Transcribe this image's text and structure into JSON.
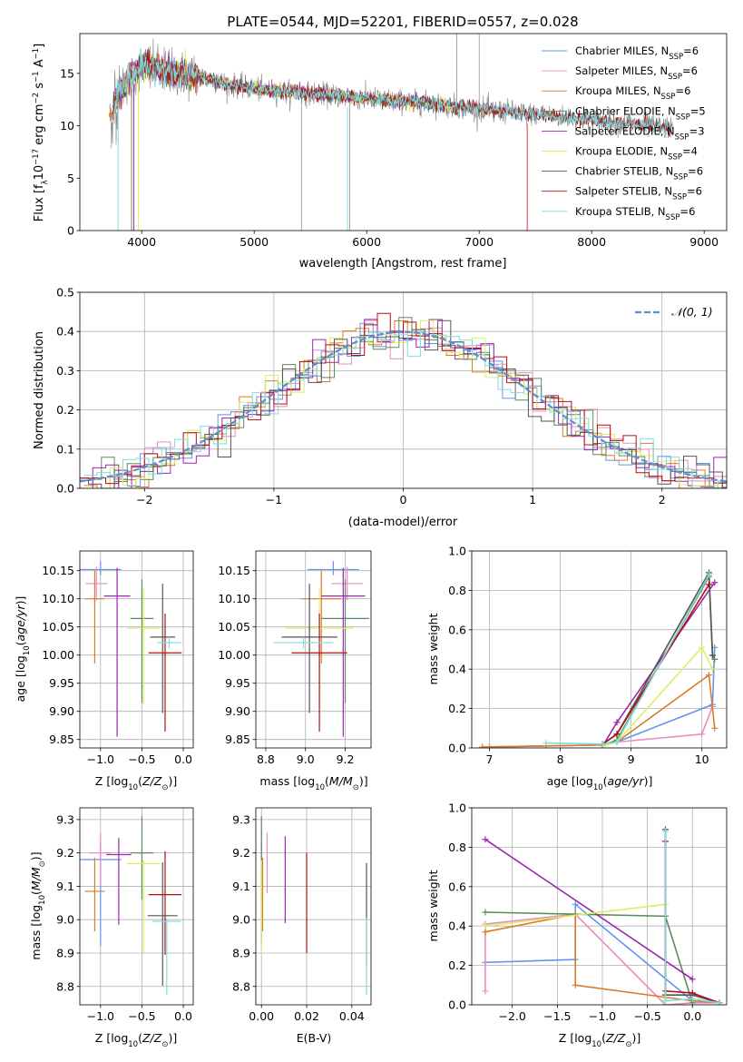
{
  "figure_title": "PLATE=0544, MJD=52201, FIBERID=0557, z=0.028",
  "colors": {
    "Chabrier MILES": "#6495ed",
    "Salpeter MILES": "#e88cc0",
    "Kroupa MILES": "#d87c28",
    "Chabrier ELODIE": "#5f8a5f",
    "Salpeter ELODIE": "#9c27b0",
    "Kroupa ELODIE": "#d8f060",
    "Chabrier STELIB": "#555555",
    "Salpeter STELIB": "#b01010",
    "Kroupa STELIB": "#80dce0",
    "data_spectrum": "#808080",
    "normal_curve": "#5b8fd6"
  },
  "chart_data": [
    {
      "id": "spectrum",
      "type": "line",
      "title": "PLATE=0544, MJD=52201, FIBERID=0557, z=0.028",
      "xlabel": "wavelength [Angstrom, rest frame]",
      "ylabel_main": "Flux [f",
      "ylabel_sub": "λ",
      "ylabel_rest": "10",
      "ylabel_exp": "−17",
      "ylabel_units": " erg cm",
      "ylabel_exp2": "−2",
      "ylabel_s": " s",
      "ylabel_exp3": "−1",
      "ylabel_A": " A",
      "ylabel_exp4": "−1",
      "ylabel_end": "]",
      "xlim": [
        3450,
        9200
      ],
      "ylim": [
        0,
        18.8
      ],
      "xticks": [
        4000,
        5000,
        6000,
        7000,
        8000,
        9000
      ],
      "yticks": [
        0,
        5,
        10,
        15
      ],
      "continuum": {
        "x": [
          3720,
          3800,
          3900,
          4000,
          4100,
          4300,
          4500,
          4800,
          5000,
          5300,
          5600,
          6000,
          6500,
          7000,
          7400,
          7800,
          8200,
          8700
        ],
        "y": [
          10.5,
          13.5,
          14.5,
          15.8,
          15.6,
          15.0,
          14.7,
          13.9,
          13.5,
          13.2,
          13.0,
          12.6,
          12.2,
          11.6,
          11.2,
          10.8,
          10.3,
          9.8
        ]
      },
      "legend": [
        {
          "label": "Chabrier MILES",
          "nssp": "6"
        },
        {
          "label": "Salpeter MILES",
          "nssp": "6"
        },
        {
          "label": "Kroupa MILES",
          "nssp": "6"
        },
        {
          "label": "Chabrier ELODIE",
          "nssp": "5"
        },
        {
          "label": "Salpeter ELODIE",
          "nssp": "3"
        },
        {
          "label": "Kroupa ELODIE",
          "nssp": "4"
        },
        {
          "label": "Chabrier STELIB",
          "nssp": "6"
        },
        {
          "label": "Salpeter STELIB",
          "nssp": "6"
        },
        {
          "label": "Kroupa STELIB",
          "nssp": "6"
        }
      ],
      "legend_prefix": "N",
      "legend_sub": "SSP",
      "legend_eq": "="
    },
    {
      "id": "residuals",
      "type": "histogram",
      "xlabel": "(data-model)/error",
      "ylabel": "Normed distribution",
      "xlim": [
        -2.5,
        2.5
      ],
      "ylim": [
        0,
        0.5
      ],
      "xticks": [
        -2,
        -1,
        0,
        1,
        2
      ],
      "yticks": [
        0.0,
        0.1,
        0.2,
        0.3,
        0.4,
        0.5
      ],
      "legend": "𝒩(0, 1)",
      "bin_width": 0.1
    },
    {
      "id": "age_vs_Z",
      "type": "errorbar",
      "xlabel": "Z [log",
      "xlabel_sub": "10",
      "xlabel_rest": "(Z/Z",
      "xlabel_sun": "⊙",
      "xlabel_end": ")]",
      "ylabel": "age  [log",
      "ylabel_sub": "10",
      "ylabel_rest": "(age/yr)]",
      "xlim": [
        -1.25,
        0.12
      ],
      "ylim": [
        9.835,
        10.185
      ],
      "xticks": [
        -1.0,
        -0.5,
        0.0
      ],
      "yticks": [
        9.85,
        9.9,
        9.95,
        10.0,
        10.05,
        10.1,
        10.15
      ],
      "points": [
        {
          "model": "Chabrier MILES",
          "x": -1.0,
          "xerr": 0.25,
          "y": 10.152,
          "yerr_lo": 0.01,
          "yerr_hi": 0.015
        },
        {
          "model": "Salpeter MILES",
          "x": -1.05,
          "xerr": 0.13,
          "y": 10.127,
          "yerr_lo": 0.03,
          "yerr_hi": 0.03
        },
        {
          "model": "Kroupa MILES",
          "x": -1.07,
          "xerr": 0.12,
          "y": 10.1,
          "yerr_lo": 0.115,
          "yerr_hi": 0.05
        },
        {
          "model": "Chabrier ELODIE",
          "x": -0.5,
          "xerr": 0.14,
          "y": 10.065,
          "yerr_lo": 0.15,
          "yerr_hi": 0.07
        },
        {
          "model": "Salpeter ELODIE",
          "x": -0.8,
          "xerr": 0.16,
          "y": 10.105,
          "yerr_lo": 0.25,
          "yerr_hi": 0.05
        },
        {
          "model": "Kroupa ELODIE",
          "x": -0.48,
          "xerr": 0.2,
          "y": 10.048,
          "yerr_lo": 0.135,
          "yerr_hi": 0.07
        },
        {
          "model": "Chabrier STELIB",
          "x": -0.25,
          "xerr": 0.15,
          "y": 10.032,
          "yerr_lo": 0.135,
          "yerr_hi": 0.095
        },
        {
          "model": "Salpeter STELIB",
          "x": -0.22,
          "xerr": 0.2,
          "y": 10.004,
          "yerr_lo": 0.14,
          "yerr_hi": 0.07
        },
        {
          "model": "Kroupa STELIB",
          "x": -0.17,
          "xerr": 0.15,
          "y": 10.022,
          "yerr_lo": 0.01,
          "yerr_hi": 0.01
        }
      ]
    },
    {
      "id": "age_vs_mass",
      "type": "errorbar",
      "xlabel": "mass [log",
      "xlabel_sub": "10",
      "xlabel_rest": "(M/M",
      "xlabel_sun": "⊙",
      "xlabel_end": ")]",
      "xlim": [
        8.75,
        9.33
      ],
      "ylim": [
        9.835,
        10.185
      ],
      "xticks": [
        8.8,
        9.0,
        9.2
      ],
      "yticks": [
        9.85,
        9.9,
        9.95,
        10.0,
        10.05,
        10.1,
        10.15
      ],
      "points": [
        {
          "model": "Chabrier MILES",
          "x": 9.14,
          "xerr": 0.13,
          "y": 10.152,
          "yerr_lo": 0.01,
          "yerr_hi": 0.015
        },
        {
          "model": "Salpeter MILES",
          "x": 9.21,
          "xerr": 0.08,
          "y": 10.127,
          "yerr_lo": 0.03,
          "yerr_hi": 0.03
        },
        {
          "model": "Kroupa MILES",
          "x": 9.08,
          "xerr": 0.1,
          "y": 10.1,
          "yerr_lo": 0.115,
          "yerr_hi": 0.05
        },
        {
          "model": "Chabrier ELODIE",
          "x": 9.2,
          "xerr": 0.12,
          "y": 10.065,
          "yerr_lo": 0.15,
          "yerr_hi": 0.07
        },
        {
          "model": "Salpeter ELODIE",
          "x": 9.19,
          "xerr": 0.11,
          "y": 10.105,
          "yerr_lo": 0.25,
          "yerr_hi": 0.05
        },
        {
          "model": "Kroupa ELODIE",
          "x": 9.07,
          "xerr": 0.17,
          "y": 10.048,
          "yerr_lo": 0.135,
          "yerr_hi": 0.07
        },
        {
          "model": "Chabrier STELIB",
          "x": 9.02,
          "xerr": 0.14,
          "y": 10.032,
          "yerr_lo": 0.135,
          "yerr_hi": 0.095
        },
        {
          "model": "Salpeter STELIB",
          "x": 9.07,
          "xerr": 0.14,
          "y": 10.004,
          "yerr_lo": 0.14,
          "yerr_hi": 0.07
        },
        {
          "model": "Kroupa STELIB",
          "x": 8.99,
          "xerr": 0.15,
          "y": 10.022,
          "yerr_lo": 0.01,
          "yerr_hi": 0.01
        }
      ]
    },
    {
      "id": "massweight_vs_age",
      "type": "line",
      "xlabel": "age  [log",
      "xlabel_sub": "10",
      "xlabel_rest": "(age/yr)]",
      "ylabel": "mass weight",
      "xlim": [
        6.75,
        10.35
      ],
      "ylim": [
        0,
        1.0
      ],
      "xticks": [
        7,
        8,
        9,
        10
      ],
      "yticks": [
        0.0,
        0.2,
        0.4,
        0.6,
        0.8,
        1.0
      ],
      "series": [
        {
          "model": "Chabrier MILES",
          "x": [
            7.0,
            7.8,
            8.6,
            8.8,
            10.15,
            10.18
          ],
          "y": [
            0.005,
            0.01,
            0.015,
            0.03,
            0.22,
            0.51
          ]
        },
        {
          "model": "Salpeter MILES",
          "x": [
            7.0,
            7.8,
            8.6,
            8.8,
            10.0,
            10.15
          ],
          "y": [
            0.005,
            0.01,
            0.015,
            0.03,
            0.07,
            0.21
          ]
        },
        {
          "model": "Kroupa MILES",
          "x": [
            6.9,
            7.8,
            8.6,
            8.8,
            10.1,
            10.18
          ],
          "y": [
            0.005,
            0.01,
            0.015,
            0.03,
            0.37,
            0.1
          ]
        },
        {
          "model": "Chabrier ELODIE",
          "x": [
            8.6,
            8.8,
            10.1,
            10.15,
            10.18
          ],
          "y": [
            0.015,
            0.04,
            0.87,
            0.47,
            0.45
          ]
        },
        {
          "model": "Salpeter ELODIE",
          "x": [
            8.6,
            8.8,
            10.18
          ],
          "y": [
            0.01,
            0.13,
            0.84
          ]
        },
        {
          "model": "Kroupa ELODIE",
          "x": [
            8.6,
            8.8,
            10.0,
            10.15
          ],
          "y": [
            0.01,
            0.03,
            0.51,
            0.4
          ]
        },
        {
          "model": "Chabrier STELIB",
          "x": [
            8.6,
            8.8,
            10.1,
            10.15
          ],
          "y": [
            0.02,
            0.07,
            0.89,
            0.47
          ]
        },
        {
          "model": "Salpeter STELIB",
          "x": [
            8.6,
            8.8,
            10.1
          ],
          "y": [
            0.02,
            0.07,
            0.83
          ]
        },
        {
          "model": "Kroupa STELIB",
          "x": [
            7.8,
            8.6,
            8.8,
            10.1
          ],
          "y": [
            0.025,
            0.02,
            0.03,
            0.88
          ]
        }
      ]
    },
    {
      "id": "mass_vs_Z",
      "type": "errorbar",
      "xlabel": "Z [log",
      "xlabel_sub": "10",
      "xlabel_rest": "(Z/Z",
      "xlabel_sun": "⊙",
      "xlabel_end": ")]",
      "ylabel": "mass [log",
      "ylabel_sub": "10",
      "ylabel_rest": "(M/M",
      "ylabel_sun": "⊙",
      "ylabel_end": ")]",
      "xlim": [
        -1.25,
        0.12
      ],
      "ylim": [
        8.745,
        9.335
      ],
      "xticks": [
        -1.0,
        -0.5,
        0.0
      ],
      "yticks": [
        8.8,
        8.9,
        9.0,
        9.1,
        9.2,
        9.3
      ],
      "points": [
        {
          "model": "Chabrier MILES",
          "x": -1.0,
          "xerr": 0.25,
          "y": 9.18,
          "yerr_lo": 0.26,
          "yerr_hi": 0.05
        },
        {
          "model": "Salpeter MILES",
          "x": -1.0,
          "xerr": 0.13,
          "y": 9.2,
          "yerr_lo": 0.1,
          "yerr_hi": 0.06
        },
        {
          "model": "Kroupa MILES",
          "x": -1.07,
          "xerr": 0.12,
          "y": 9.085,
          "yerr_lo": 0.12,
          "yerr_hi": 0.1
        },
        {
          "model": "Chabrier ELODIE",
          "x": -0.5,
          "xerr": 0.14,
          "y": 9.2,
          "yerr_lo": 0.14,
          "yerr_hi": 0.11
        },
        {
          "model": "Salpeter ELODIE",
          "x": -0.78,
          "xerr": 0.15,
          "y": 9.195,
          "yerr_lo": 0.21,
          "yerr_hi": 0.05
        },
        {
          "model": "Kroupa ELODIE",
          "x": -0.48,
          "xerr": 0.2,
          "y": 9.168,
          "yerr_lo": 0.27,
          "yerr_hi": 0.01
        },
        {
          "model": "Chabrier STELIB",
          "x": -0.25,
          "xerr": 0.18,
          "y": 9.012,
          "yerr_lo": 0.21,
          "yerr_hi": 0.16
        },
        {
          "model": "Salpeter STELIB",
          "x": -0.22,
          "xerr": 0.2,
          "y": 9.075,
          "yerr_lo": 0.18,
          "yerr_hi": 0.13
        },
        {
          "model": "Kroupa STELIB",
          "x": -0.2,
          "xerr": 0.17,
          "y": 8.995,
          "yerr_lo": 0.22,
          "yerr_hi": 0.01
        }
      ]
    },
    {
      "id": "mass_vs_ebv",
      "type": "errorbar",
      "xlabel": "E(B-V)",
      "xlim": [
        -0.0025,
        0.0485
      ],
      "ylim": [
        8.745,
        9.335
      ],
      "xticks": [
        0.0,
        0.02,
        0.04
      ],
      "yticks": [
        8.8,
        8.9,
        9.0,
        9.1,
        9.2,
        9.3
      ],
      "points": [
        {
          "model": "Chabrier MILES",
          "x": 0.0,
          "xerr": 0,
          "y": 9.18,
          "yerr_lo": 0.26,
          "yerr_hi": 0.05
        },
        {
          "model": "Salpeter MILES",
          "x": 0.0025,
          "xerr": 0,
          "y": 9.2,
          "yerr_lo": 0.12,
          "yerr_hi": 0.06
        },
        {
          "model": "Kroupa MILES",
          "x": 0.0005,
          "xerr": 0,
          "y": 9.085,
          "yerr_lo": 0.12,
          "yerr_hi": 0.1
        },
        {
          "model": "Chabrier ELODIE",
          "x": 0.0,
          "xerr": 0,
          "y": 9.2,
          "yerr_lo": 0.14,
          "yerr_hi": 0.11
        },
        {
          "model": "Salpeter ELODIE",
          "x": 0.0105,
          "xerr": 0,
          "y": 9.12,
          "yerr_lo": 0.13,
          "yerr_hi": 0.13
        },
        {
          "model": "Kroupa ELODIE",
          "x": 0.0,
          "xerr": 0,
          "y": 9.168,
          "yerr_lo": 0.27,
          "yerr_hi": 0.01
        },
        {
          "model": "Chabrier STELIB",
          "x": 0.0465,
          "xerr": 0,
          "y": 9.1,
          "yerr_lo": 0.24,
          "yerr_hi": 0.07
        },
        {
          "model": "Salpeter STELIB",
          "x": 0.02,
          "xerr": 0,
          "y": 9.05,
          "yerr_lo": 0.15,
          "yerr_hi": 0.15
        },
        {
          "model": "Kroupa STELIB",
          "x": 0.0465,
          "xerr": 0,
          "y": 8.995,
          "yerr_lo": 0.22,
          "yerr_hi": 0.01
        }
      ]
    },
    {
      "id": "massweight_vs_Z",
      "type": "line",
      "xlabel": "Z [log",
      "xlabel_sub": "10",
      "xlabel_rest": "(Z/Z",
      "xlabel_sun": "⊙",
      "xlabel_end": ")]",
      "ylabel": "mass weight",
      "xlim": [
        -2.45,
        0.38
      ],
      "ylim": [
        0,
        1.0
      ],
      "xticks": [
        -2.0,
        -1.5,
        -1.0,
        -0.5,
        0.0
      ],
      "yticks": [
        0.0,
        0.2,
        0.4,
        0.6,
        0.8,
        1.0
      ],
      "series": [
        {
          "model": "Chabrier MILES",
          "x": [
            -2.3,
            -1.3,
            -1.3,
            0.0,
            0.0,
            0.3
          ],
          "y": [
            0.215,
            0.23,
            0.51,
            0.02,
            0.05,
            0.01
          ]
        },
        {
          "model": "Salpeter MILES",
          "x": [
            -2.3,
            -2.3,
            -1.3,
            -0.3,
            0.0,
            0.3
          ],
          "y": [
            0.07,
            0.41,
            0.46,
            0.0,
            0.01,
            0.01
          ]
        },
        {
          "model": "Kroupa MILES",
          "x": [
            -2.3,
            -1.3,
            -1.3,
            0.0,
            0.3
          ],
          "y": [
            0.37,
            0.46,
            0.1,
            0.02,
            0.01
          ]
        },
        {
          "model": "Chabrier ELODIE",
          "x": [
            -2.3,
            -0.3,
            0.0
          ],
          "y": [
            0.47,
            0.45,
            0.01
          ]
        },
        {
          "model": "Salpeter ELODIE",
          "x": [
            -2.3,
            0.0
          ],
          "y": [
            0.84,
            0.13
          ]
        },
        {
          "model": "Kroupa ELODIE",
          "x": [
            -2.3,
            -0.3,
            -0.3
          ],
          "y": [
            0.4,
            0.51,
            0.03
          ]
        },
        {
          "model": "Chabrier STELIB",
          "x": [
            -0.3,
            -0.3,
            0.0,
            0.3
          ],
          "y": [
            0.89,
            0.05,
            0.05,
            0.01
          ]
        },
        {
          "model": "Salpeter STELIB",
          "x": [
            -0.3,
            -0.3,
            0.0,
            0.3
          ],
          "y": [
            0.83,
            0.07,
            0.06,
            0.01
          ]
        },
        {
          "model": "Kroupa STELIB",
          "x": [
            -0.3,
            -0.3,
            0.0,
            0.3
          ],
          "y": [
            0.88,
            0.02,
            0.03,
            0.01
          ]
        }
      ]
    }
  ]
}
